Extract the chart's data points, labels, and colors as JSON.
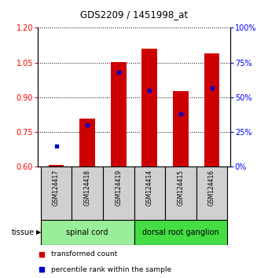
{
  "title": "GDS2209 / 1451998_at",
  "samples": [
    "GSM124417",
    "GSM124418",
    "GSM124419",
    "GSM124414",
    "GSM124415",
    "GSM124416"
  ],
  "transformed_counts": [
    0.607,
    0.807,
    1.052,
    1.11,
    0.928,
    1.09
  ],
  "percentile_ranks": [
    15,
    30,
    68,
    55,
    38,
    57
  ],
  "ylim_left": [
    0.6,
    1.2
  ],
  "ylim_right": [
    0,
    100
  ],
  "yticks_left": [
    0.6,
    0.75,
    0.9,
    1.05,
    1.2
  ],
  "yticks_right": [
    0,
    25,
    50,
    75,
    100
  ],
  "bar_color": "#cc0000",
  "point_color": "#0000cc",
  "tissue_colors": {
    "spinal cord": "#99ee99",
    "dorsal root ganglion": "#44dd44"
  },
  "legend_items": [
    {
      "label": "transformed count",
      "color": "#cc0000"
    },
    {
      "label": "percentile rank within the sample",
      "color": "#0000cc"
    }
  ],
  "bar_bottom": 0.6,
  "tissue_label": "tissue"
}
